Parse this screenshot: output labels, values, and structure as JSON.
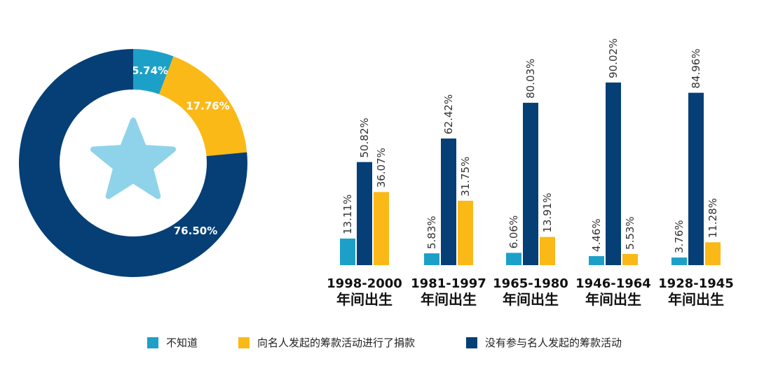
{
  "colors": {
    "light_blue": "#1da0c8",
    "yellow": "#fbb917",
    "navy": "#053f76",
    "star": "#8fd3ea"
  },
  "chart_data": [
    {
      "type": "pie",
      "variant": "donut",
      "center_icon": "star-icon",
      "slices": [
        {
          "series": "不知道",
          "value": 5.74,
          "label": "5.74%",
          "color": "#1da0c8"
        },
        {
          "series": "向名人发起的筹款活动进行了捐款",
          "value": 17.76,
          "label": "17.76%",
          "color": "#fbb917"
        },
        {
          "series": "没有参与名人发起的筹款活动",
          "value": 76.5,
          "label": "76.50%",
          "color": "#053f76"
        }
      ]
    },
    {
      "type": "bar",
      "categories": [
        {
          "years": "1998-2000",
          "suffix": "年间出生"
        },
        {
          "years": "1981-1997",
          "suffix": "年间出生"
        },
        {
          "years": "1965-1980",
          "suffix": "年间出生"
        },
        {
          "years": "1946-1964",
          "suffix": "年间出生"
        },
        {
          "years": "1928-1945",
          "suffix": "年间出生"
        }
      ],
      "series": [
        {
          "name": "不知道",
          "color": "#1da0c8",
          "values": [
            13.11,
            5.83,
            6.06,
            4.46,
            3.76
          ],
          "labels": [
            "13.11%",
            "5.83%",
            "6.06%",
            "4.46%",
            "3.76%"
          ]
        },
        {
          "name": "没有参与名人发起的筹款活动",
          "color": "#053f76",
          "values": [
            50.82,
            62.42,
            80.03,
            90.02,
            84.96
          ],
          "labels": [
            "50.82%",
            "62.42%",
            "80.03%",
            "90.02%",
            "84.96%"
          ]
        },
        {
          "name": "向名人发起的筹款活动进行了捐款",
          "color": "#fbb917",
          "values": [
            36.07,
            31.75,
            13.91,
            5.53,
            11.28
          ],
          "labels": [
            "36.07%",
            "31.75%",
            "13.91%",
            "5.53%",
            "11.28%"
          ]
        }
      ],
      "ylim": [
        0,
        100
      ],
      "grid": false,
      "legend": [
        {
          "label": "不知道",
          "color": "#1da0c8"
        },
        {
          "label": "向名人发起的筹款活动进行了捐款",
          "color": "#fbb917"
        },
        {
          "label": "没有参与名人发起的筹款活动",
          "color": "#053f76"
        }
      ],
      "legend_position": "bottom"
    }
  ]
}
